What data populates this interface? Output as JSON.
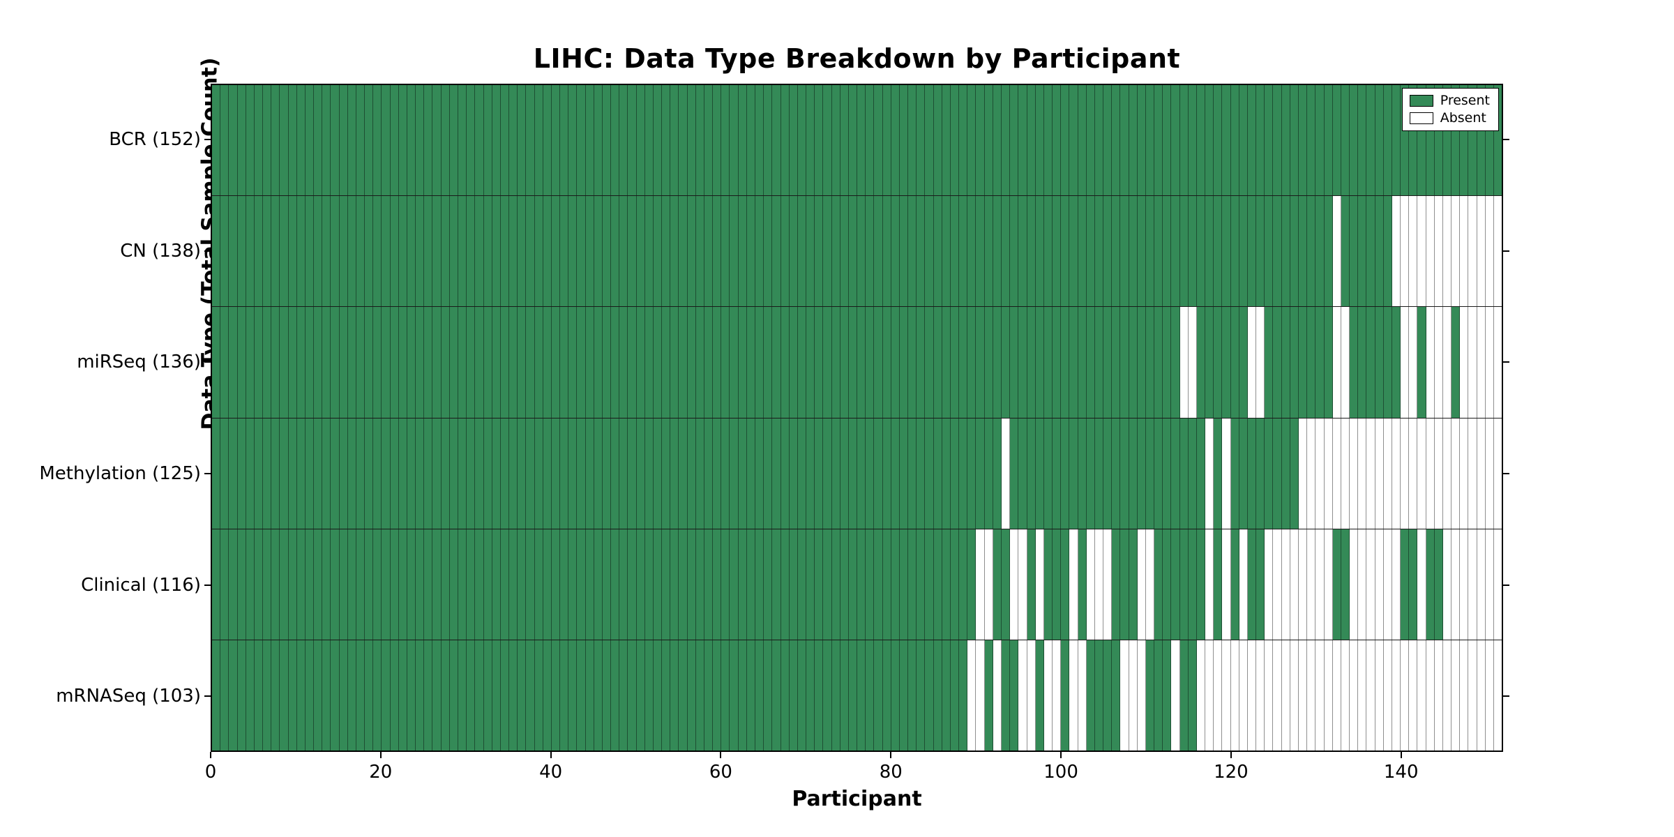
{
  "figure": {
    "title": "LIHC: Data Type Breakdown by Participant",
    "xlabel": "Participant",
    "ylabel": "Data Type (Total Sample Count)"
  },
  "legend": {
    "present_label": "Present",
    "absent_label": "Absent",
    "position": "upper right"
  },
  "colors": {
    "present": "#348a57",
    "absent": "#ffffff",
    "present_grid": "#1e4f33",
    "absent_grid": "#8f8f8f",
    "row_divider": "#1a1a1a",
    "spine": "#000000"
  },
  "chart_data": {
    "type": "heatmap",
    "title": "LIHC: Data Type Breakdown by Participant",
    "xlabel": "Participant",
    "ylabel": "Data Type (Total Sample Count)",
    "n_participants": 152,
    "x_ticks": [
      0,
      20,
      40,
      60,
      80,
      100,
      120,
      140
    ],
    "grid": "column and row separators visible",
    "legend_entries": [
      "Present",
      "Absent"
    ],
    "legend_position": "upper right",
    "cell_states": {
      "present": 1,
      "absent": 0
    },
    "rows": [
      {
        "label": "BCR (152)",
        "data_type": "BCR",
        "present_count": 152,
        "absent_columns": []
      },
      {
        "label": "CN (138)",
        "data_type": "CN",
        "present_count": 138,
        "absent_columns": [
          132,
          139,
          140,
          141,
          142,
          143,
          144,
          145,
          146,
          147,
          148,
          149,
          150,
          151
        ]
      },
      {
        "label": "miRSeq (136)",
        "data_type": "miRSeq",
        "present_count": 136,
        "absent_columns": [
          114,
          115,
          122,
          123,
          132,
          133,
          140,
          141,
          143,
          144,
          145,
          147,
          148,
          149,
          150,
          151
        ]
      },
      {
        "label": "Methylation (125)",
        "data_type": "Methylation",
        "present_count": 125,
        "absent_columns": [
          93,
          117,
          119,
          128,
          129,
          130,
          131,
          132,
          133,
          134,
          135,
          136,
          137,
          138,
          139,
          140,
          141,
          142,
          143,
          144,
          145,
          146,
          147,
          148,
          149,
          150,
          151
        ]
      },
      {
        "label": "Clinical (116)",
        "data_type": "Clinical",
        "present_count": 116,
        "absent_columns": [
          90,
          91,
          94,
          95,
          97,
          101,
          103,
          104,
          105,
          109,
          110,
          117,
          119,
          121,
          124,
          125,
          126,
          127,
          128,
          129,
          130,
          131,
          134,
          135,
          136,
          137,
          138,
          139,
          142,
          145,
          146,
          147,
          148,
          149,
          150,
          151
        ]
      },
      {
        "label": "mRNASeq (103)",
        "data_type": "mRNASeq",
        "present_count": 103,
        "absent_columns": [
          89,
          90,
          92,
          95,
          96,
          98,
          99,
          101,
          102,
          107,
          108,
          109,
          113,
          116,
          117,
          118,
          119,
          120,
          121,
          122,
          123,
          124,
          125,
          126,
          127,
          128,
          129,
          130,
          131,
          132,
          133,
          134,
          135,
          136,
          137,
          138,
          139,
          140,
          141,
          142,
          143,
          144,
          145,
          146,
          147,
          148,
          149,
          150,
          151
        ]
      }
    ]
  }
}
